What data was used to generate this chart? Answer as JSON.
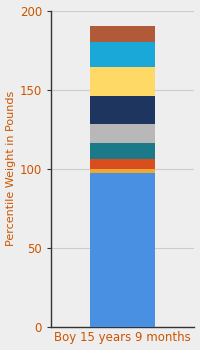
{
  "category": "Boy 15 years 9 months",
  "segments": [
    {
      "label": "base_blue",
      "value": 97,
      "color": "#4a90e2"
    },
    {
      "label": "gold_thin",
      "value": 3,
      "color": "#f0a830"
    },
    {
      "label": "orange_red",
      "value": 6,
      "color": "#d94e1f"
    },
    {
      "label": "teal",
      "value": 10,
      "color": "#1a7a8a"
    },
    {
      "label": "silver",
      "value": 12,
      "color": "#b8b8b8"
    },
    {
      "label": "dark_navy",
      "value": 18,
      "color": "#1e3560"
    },
    {
      "label": "yellow",
      "value": 18,
      "color": "#ffd966"
    },
    {
      "label": "sky_blue",
      "value": 16,
      "color": "#1aa8d9"
    },
    {
      "label": "brown_red",
      "value": 10,
      "color": "#b05a3a"
    }
  ],
  "ylabel": "Percentile Weight in Pounds",
  "ylim": [
    0,
    200
  ],
  "yticks": [
    0,
    50,
    100,
    150,
    200
  ],
  "background_color": "#eeeeee",
  "xlabel_fontsize": 8.5,
  "ylabel_fontsize": 8,
  "tick_fontsize": 8.5,
  "bar_width": 0.45,
  "spine_color": "#333333"
}
